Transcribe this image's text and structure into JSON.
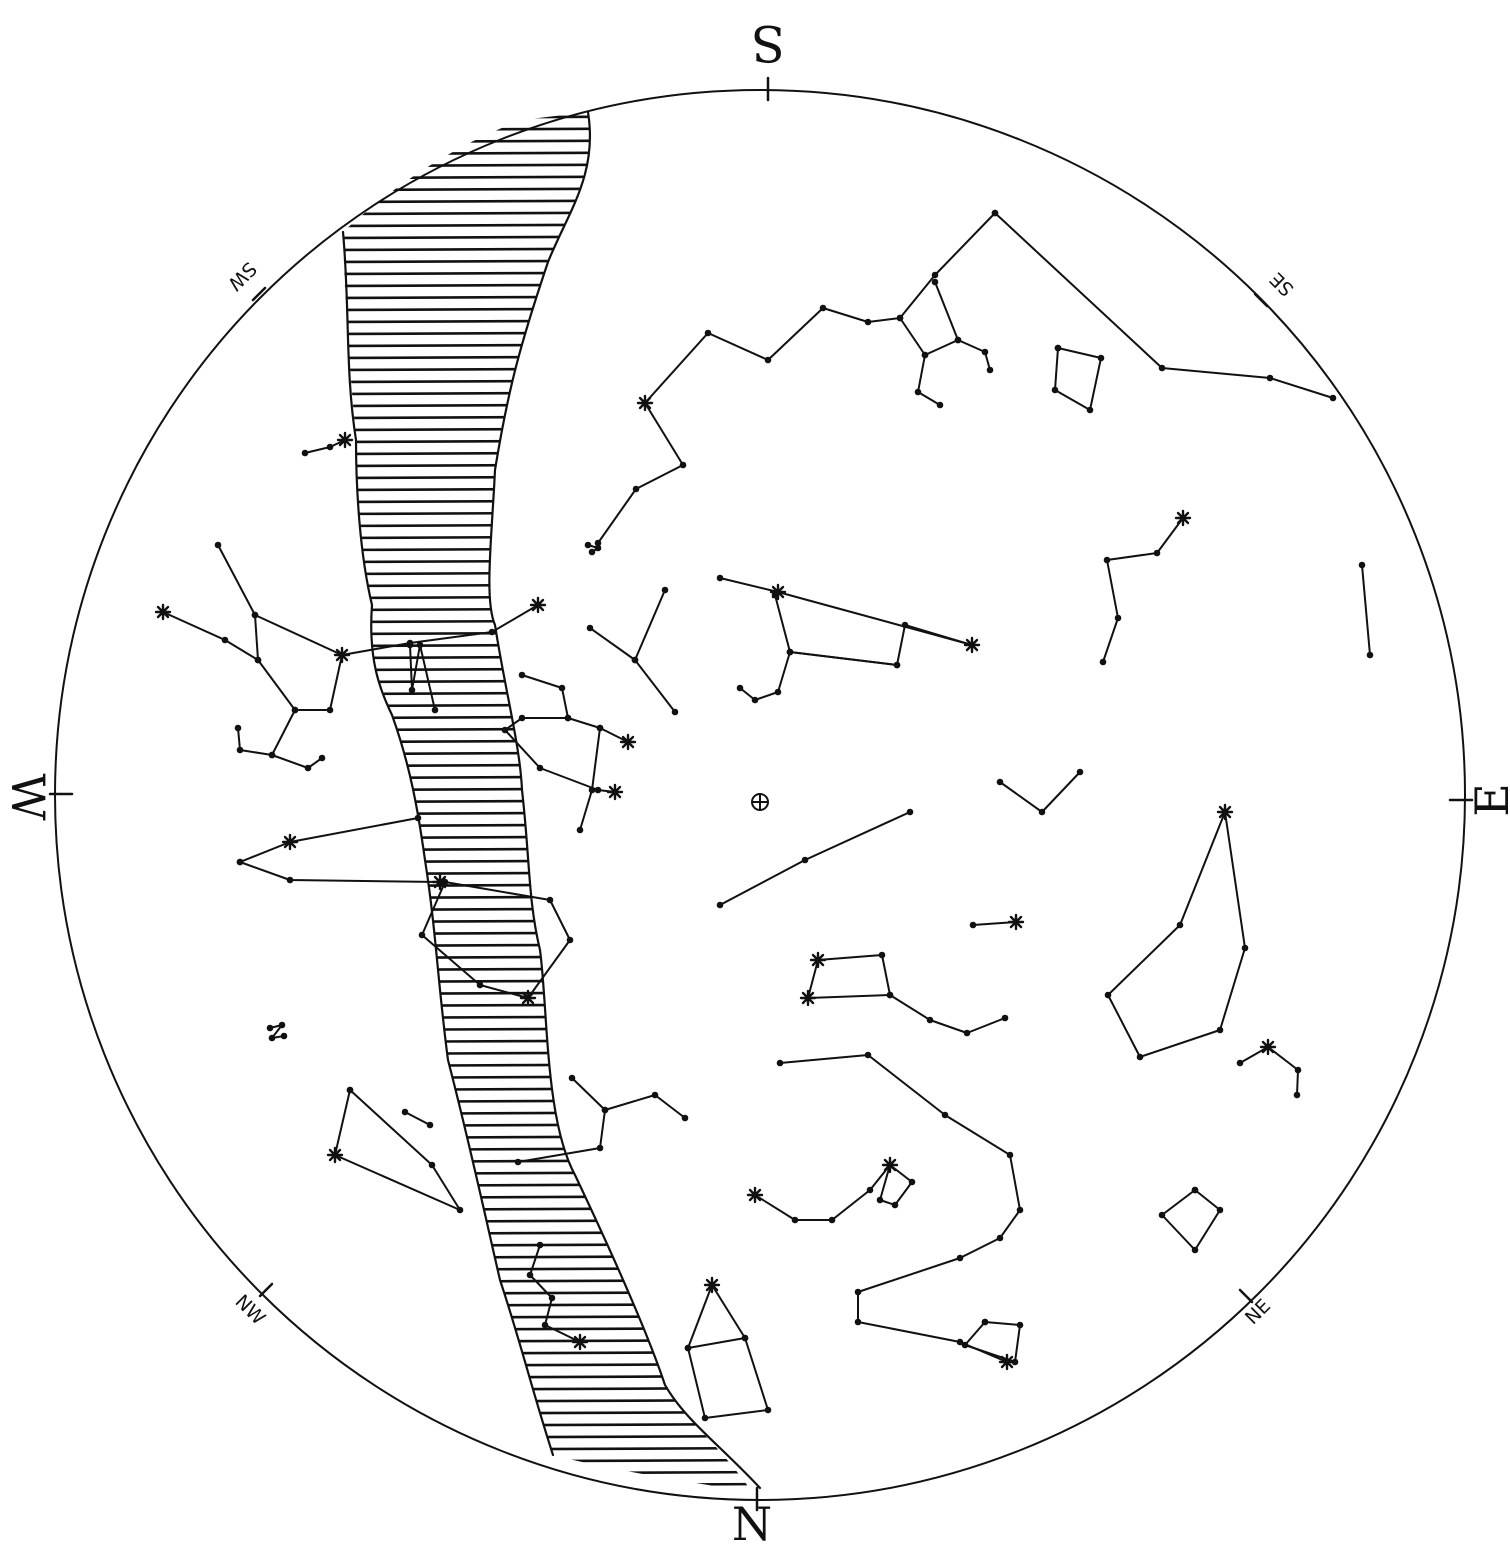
{
  "title": "",
  "directions": {
    "north": "N",
    "south": "S",
    "east": "E",
    "west": "W",
    "northeast": "NE",
    "northwest": "NW",
    "southeast": "SE",
    "southwest": "SW"
  },
  "colors": {
    "ink": "#111111",
    "paper": "#ffffff"
  },
  "features": [
    "milky-way-band",
    "zenith-marker",
    "constellation-figures"
  ]
}
